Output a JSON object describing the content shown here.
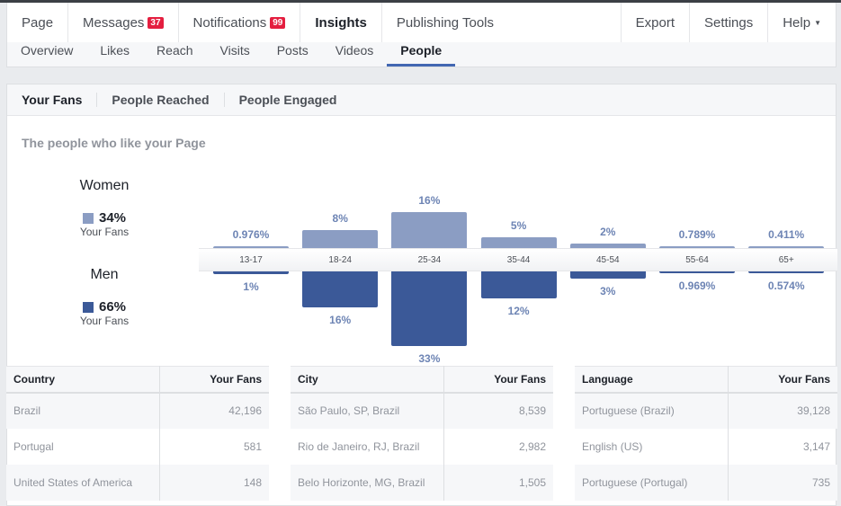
{
  "topnav": {
    "items": [
      {
        "label": "Page"
      },
      {
        "label": "Messages",
        "badge": "37"
      },
      {
        "label": "Notifications",
        "badge": "99"
      },
      {
        "label": "Insights",
        "active": true
      },
      {
        "label": "Publishing Tools"
      }
    ],
    "right": [
      {
        "label": "Export"
      },
      {
        "label": "Settings"
      },
      {
        "label": "Help"
      }
    ]
  },
  "subnav": {
    "items": [
      "Overview",
      "Likes",
      "Reach",
      "Visits",
      "Posts",
      "Videos",
      "People"
    ],
    "active": "People"
  },
  "tabs": {
    "items": [
      "Your Fans",
      "People Reached",
      "People Engaged"
    ],
    "active": "Your Fans"
  },
  "subtitle": "The people who like your Page",
  "legend": {
    "women": {
      "title": "Women",
      "pct": "34%",
      "sub": "Your Fans"
    },
    "men": {
      "title": "Men",
      "pct": "66%",
      "sub": "Your Fans"
    }
  },
  "colors": {
    "women": "#8b9dc3",
    "men": "#3b5998",
    "accent": "#4267b2",
    "badge": "#e41e3f"
  },
  "chart_data": {
    "type": "bar",
    "categories": [
      "13-17",
      "18-24",
      "25-34",
      "35-44",
      "45-54",
      "55-64",
      "65+"
    ],
    "series": [
      {
        "name": "Women",
        "values": [
          0.976,
          8,
          16,
          5,
          2,
          0.789,
          0.411
        ],
        "labels": [
          "0.976%",
          "8%",
          "16%",
          "5%",
          "2%",
          "0.789%",
          "0.411%"
        ]
      },
      {
        "name": "Men",
        "values": [
          1,
          16,
          33,
          12,
          3,
          0.969,
          0.574
        ],
        "labels": [
          "1%",
          "16%",
          "33%",
          "12%",
          "3%",
          "0.969%",
          "0.574%"
        ]
      }
    ]
  },
  "tables": [
    {
      "headers": [
        "Country",
        "Your Fans"
      ],
      "rows": [
        [
          "Brazil",
          "42,196"
        ],
        [
          "Portugal",
          "581"
        ],
        [
          "United States of America",
          "148"
        ]
      ]
    },
    {
      "headers": [
        "City",
        "Your Fans"
      ],
      "rows": [
        [
          "São Paulo, SP, Brazil",
          "8,539"
        ],
        [
          "Rio de Janeiro, RJ, Brazil",
          "2,982"
        ],
        [
          "Belo Horizonte, MG, Brazil",
          "1,505"
        ]
      ]
    },
    {
      "headers": [
        "Language",
        "Your Fans"
      ],
      "rows": [
        [
          "Portuguese (Brazil)",
          "39,128"
        ],
        [
          "English (US)",
          "3,147"
        ],
        [
          "Portuguese (Portugal)",
          "735"
        ]
      ]
    }
  ]
}
